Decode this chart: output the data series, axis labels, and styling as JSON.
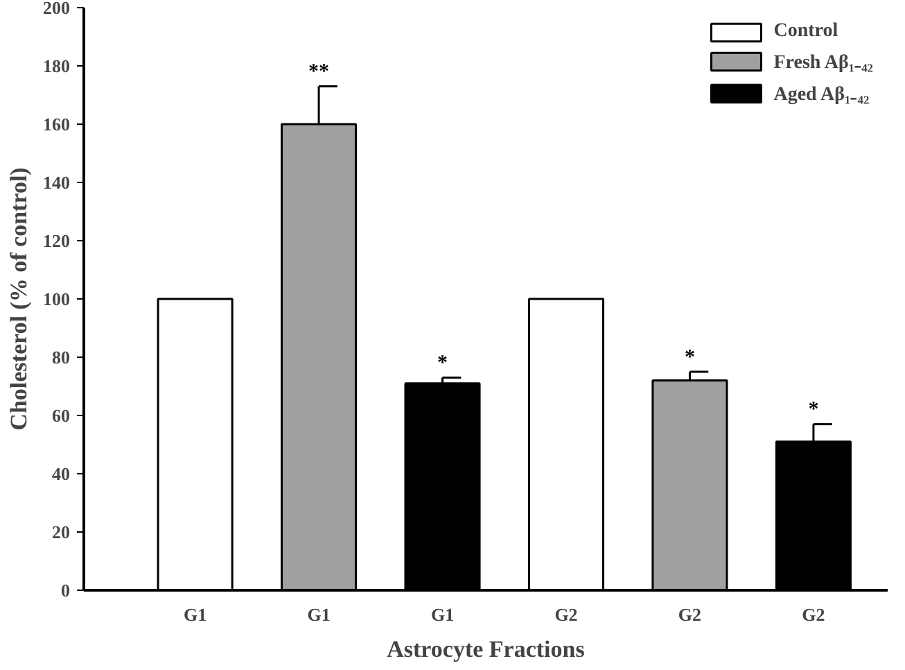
{
  "chart_data": {
    "type": "bar",
    "xlabel": "Astrocyte Fractions",
    "ylabel": "Cholesterol (% of control)",
    "categories": [
      "G1",
      "G1",
      "G1",
      "G2",
      "G2",
      "G2"
    ],
    "series": [
      {
        "name": "Control",
        "color": "#ffffff",
        "values": [
          100,
          null,
          null,
          100,
          null,
          null
        ]
      },
      {
        "name": "Fresh Aβ₁₋₄₂",
        "color": "#a0a0a0",
        "values": [
          null,
          160,
          null,
          null,
          72,
          null
        ],
        "errors": [
          null,
          [
            160,
            173
          ],
          null,
          null,
          [
            72,
            75
          ],
          null
        ],
        "value_labels": [
          null,
          "**",
          null,
          null,
          "*",
          null
        ]
      },
      {
        "name": "Aged Aβ₁₋₄₂",
        "color": "#000000",
        "values": [
          null,
          null,
          71,
          null,
          null,
          51
        ],
        "errors": [
          null,
          null,
          [
            71,
            73
          ],
          null,
          null,
          [
            51,
            57
          ]
        ],
        "value_labels": [
          null,
          null,
          "*",
          null,
          null,
          "*"
        ]
      }
    ],
    "ylim": [
      0,
      200
    ],
    "yticks": [
      0,
      20,
      40,
      60,
      80,
      100,
      120,
      140,
      160,
      180,
      200
    ],
    "grid": false,
    "legend": "top right"
  }
}
